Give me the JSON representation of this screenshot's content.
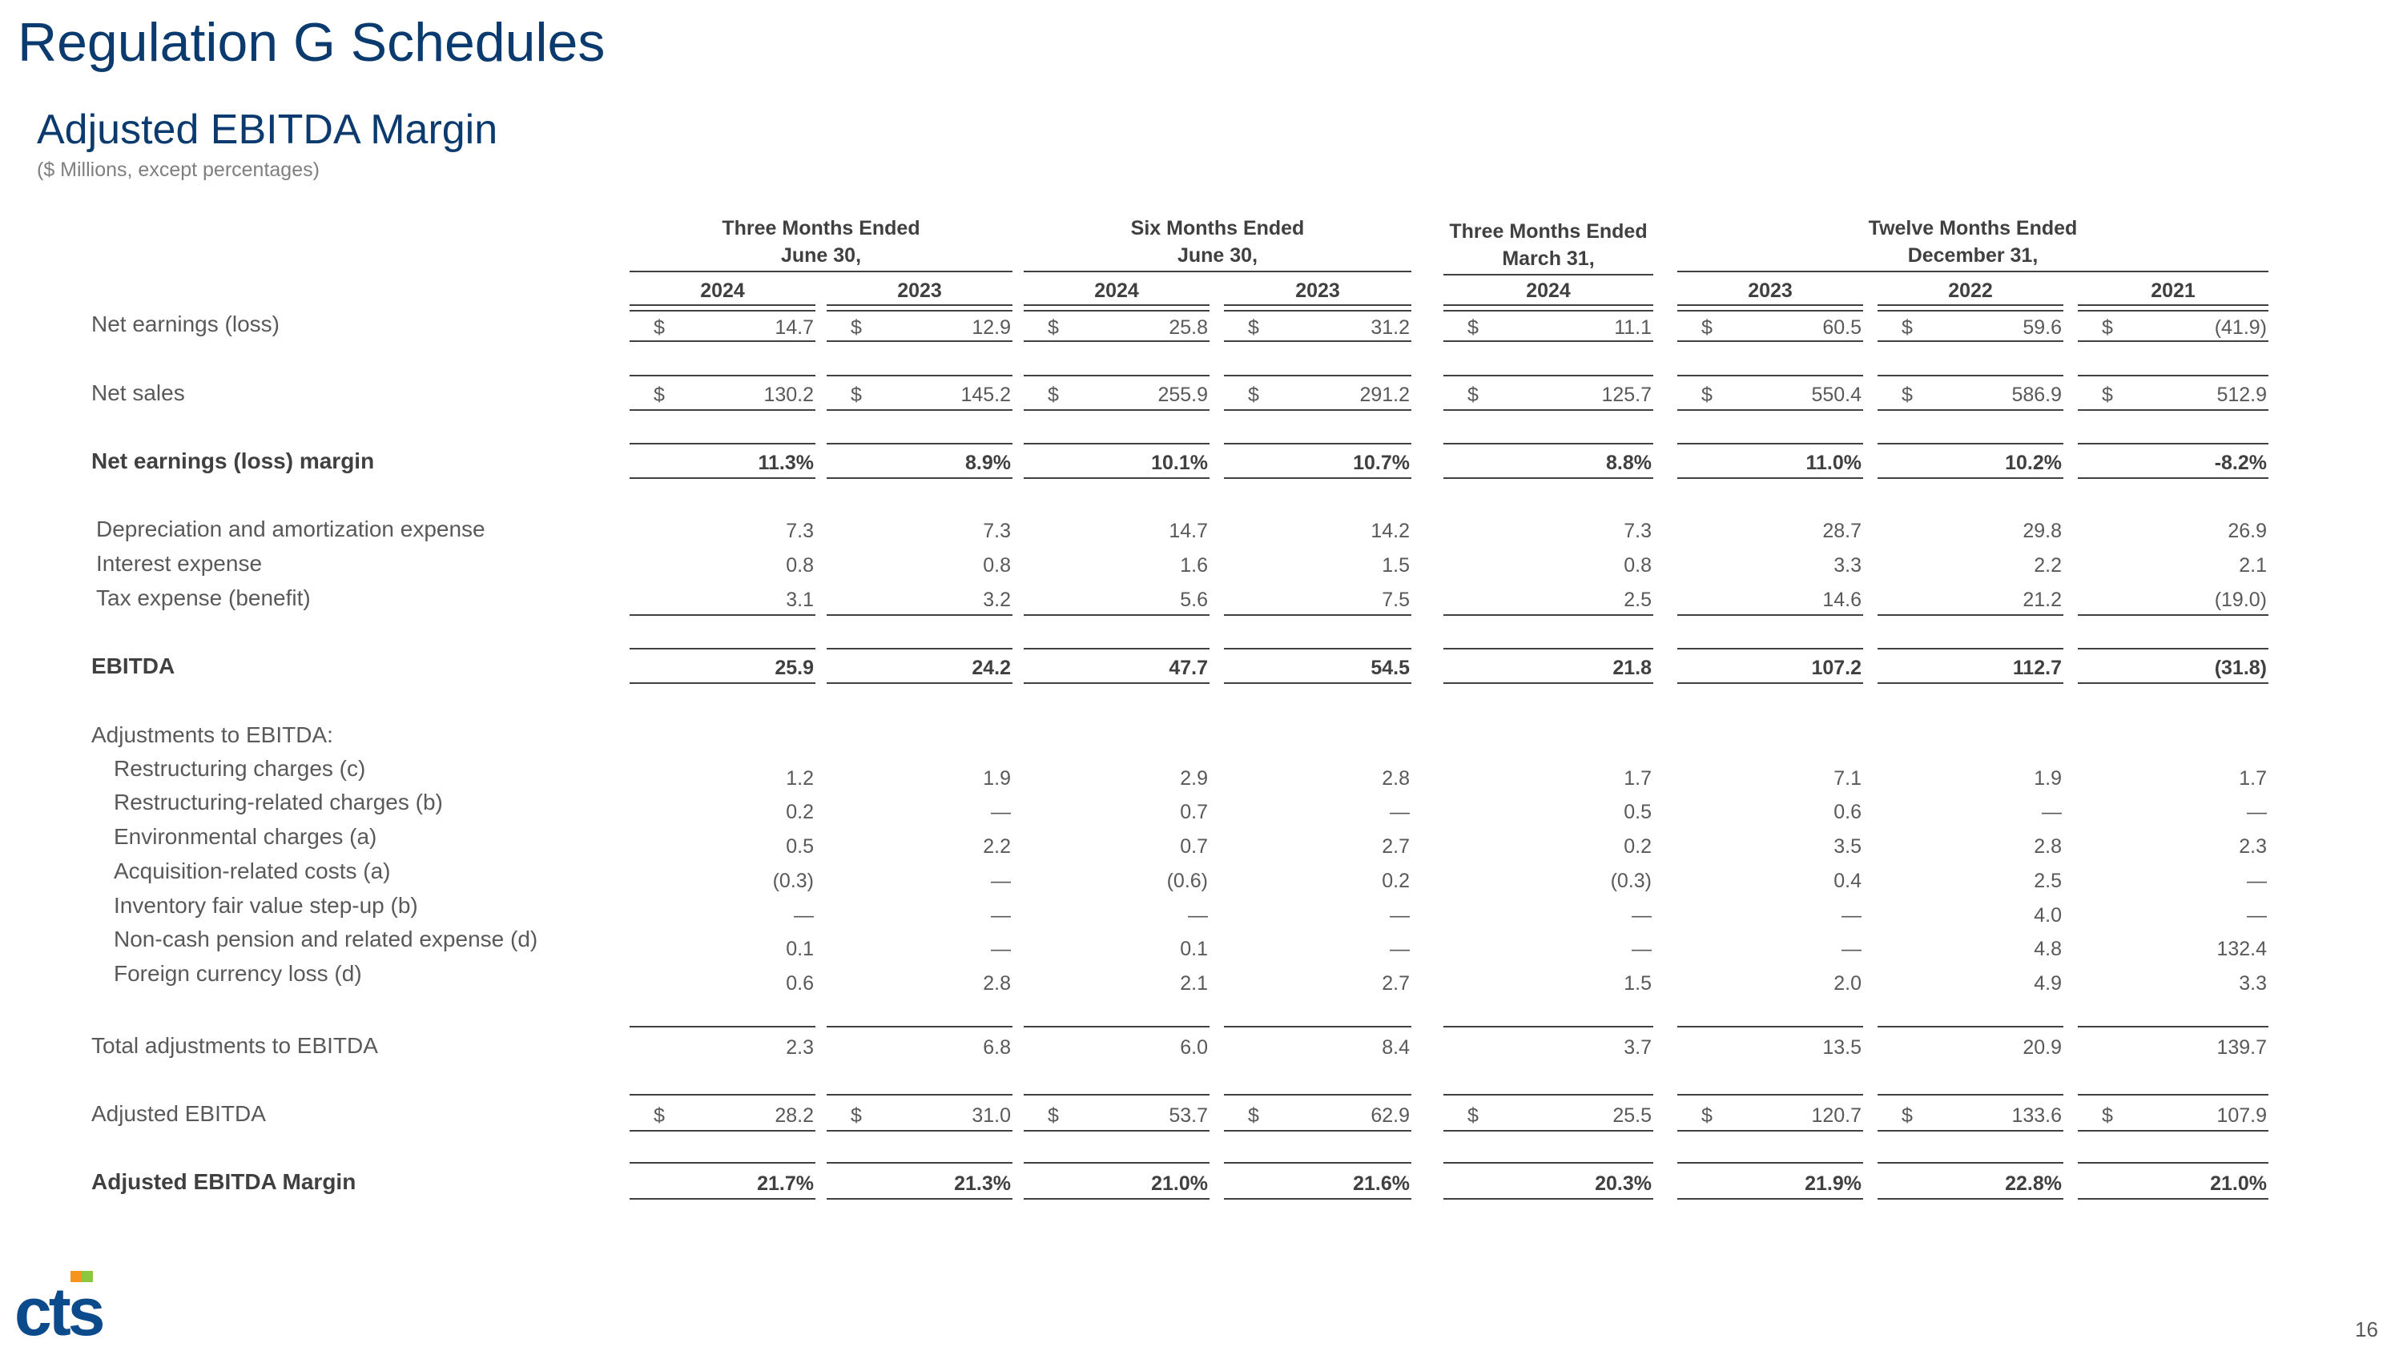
{
  "page": {
    "title": "Regulation G Schedules",
    "subtitle": "Adjusted EBITDA Margin",
    "units_note": "($ Millions, except percentages)",
    "page_number": "16"
  },
  "logo": {
    "text": "cts",
    "accent_color": "#f7941d",
    "accent2_color": "#8dc63f",
    "main_color": "#0b4a8b"
  },
  "groups": [
    {
      "line1": "Three Months Ended",
      "line2": "June 30,"
    },
    {
      "line1": "Six Months Ended",
      "line2": "June 30,"
    },
    {
      "line1": "Three Months Ended",
      "line2": "March 31,"
    },
    {
      "line1": "Twelve Months Ended",
      "line2": "December 31,"
    }
  ],
  "years": [
    "2024",
    "2023",
    "2024",
    "2023",
    "2024",
    "2023",
    "2022",
    "2021"
  ],
  "currency_symbol": "$",
  "rows": {
    "net_earnings": {
      "label": "Net earnings (loss)",
      "values": [
        "14.7",
        "12.9",
        "25.8",
        "31.2",
        "11.1",
        "60.5",
        "59.6",
        "(41.9)"
      ]
    },
    "net_sales": {
      "label": "Net sales",
      "values": [
        "130.2",
        "145.2",
        "255.9",
        "291.2",
        "125.7",
        "550.4",
        "586.9",
        "512.9"
      ]
    },
    "net_margin": {
      "label": "Net earnings (loss) margin",
      "values": [
        "11.3%",
        "8.9%",
        "10.1%",
        "10.7%",
        "8.8%",
        "11.0%",
        "10.2%",
        "-8.2%"
      ]
    },
    "depreciation": {
      "label": "Depreciation and amortization expense",
      "values": [
        "7.3",
        "7.3",
        "14.7",
        "14.2",
        "7.3",
        "28.7",
        "29.8",
        "26.9"
      ]
    },
    "interest": {
      "label": "Interest expense",
      "values": [
        "0.8",
        "0.8",
        "1.6",
        "1.5",
        "0.8",
        "3.3",
        "2.2",
        "2.1"
      ]
    },
    "tax": {
      "label": "Tax expense (benefit)",
      "values": [
        "3.1",
        "3.2",
        "5.6",
        "7.5",
        "2.5",
        "14.6",
        "21.2",
        "(19.0)"
      ]
    },
    "ebitda": {
      "label": "EBITDA",
      "values": [
        "25.9",
        "24.2",
        "47.7",
        "54.5",
        "21.8",
        "107.2",
        "112.7",
        "(31.8)"
      ]
    },
    "adjustments_header": {
      "label": "Adjustments to EBITDA:"
    },
    "restructuring": {
      "label": "Restructuring charges (c)",
      "values": [
        "1.2",
        "1.9",
        "2.9",
        "2.8",
        "1.7",
        "7.1",
        "1.9",
        "1.7"
      ]
    },
    "restructuring_related": {
      "label": "Restructuring-related charges (b)",
      "values": [
        "0.2",
        "—",
        "0.7",
        "—",
        "0.5",
        "0.6",
        "—",
        "—"
      ]
    },
    "environmental": {
      "label": "Environmental charges (a)",
      "values": [
        "0.5",
        "2.2",
        "0.7",
        "2.7",
        "0.2",
        "3.5",
        "2.8",
        "2.3"
      ]
    },
    "acquisition": {
      "label": "Acquisition-related costs (a)",
      "values": [
        "(0.3)",
        "—",
        "(0.6)",
        "0.2",
        "(0.3)",
        "0.4",
        "2.5",
        "—"
      ]
    },
    "inventory": {
      "label": "Inventory fair value step-up (b)",
      "values": [
        "—",
        "—",
        "—",
        "—",
        "—",
        "—",
        "4.0",
        "—"
      ]
    },
    "pension": {
      "label": "Non-cash pension and related expense (d)",
      "values": [
        "0.1",
        "—",
        "0.1",
        "—",
        "—",
        "—",
        "4.8",
        "132.4"
      ]
    },
    "fx_loss": {
      "label": "Foreign currency loss (d)",
      "values": [
        "0.6",
        "2.8",
        "2.1",
        "2.7",
        "1.5",
        "2.0",
        "4.9",
        "3.3"
      ]
    },
    "total_adjustments": {
      "label": "Total adjustments to EBITDA",
      "values": [
        "2.3",
        "6.8",
        "6.0",
        "8.4",
        "3.7",
        "13.5",
        "20.9",
        "139.7"
      ]
    },
    "adjusted_ebitda": {
      "label": "Adjusted EBITDA",
      "values": [
        "28.2",
        "31.0",
        "53.7",
        "62.9",
        "25.5",
        "120.7",
        "133.6",
        "107.9"
      ]
    },
    "adjusted_margin": {
      "label": "Adjusted EBITDA Margin",
      "values": [
        "21.7%",
        "21.3%",
        "21.0%",
        "21.6%",
        "20.3%",
        "21.9%",
        "22.8%",
        "21.0%"
      ]
    }
  }
}
